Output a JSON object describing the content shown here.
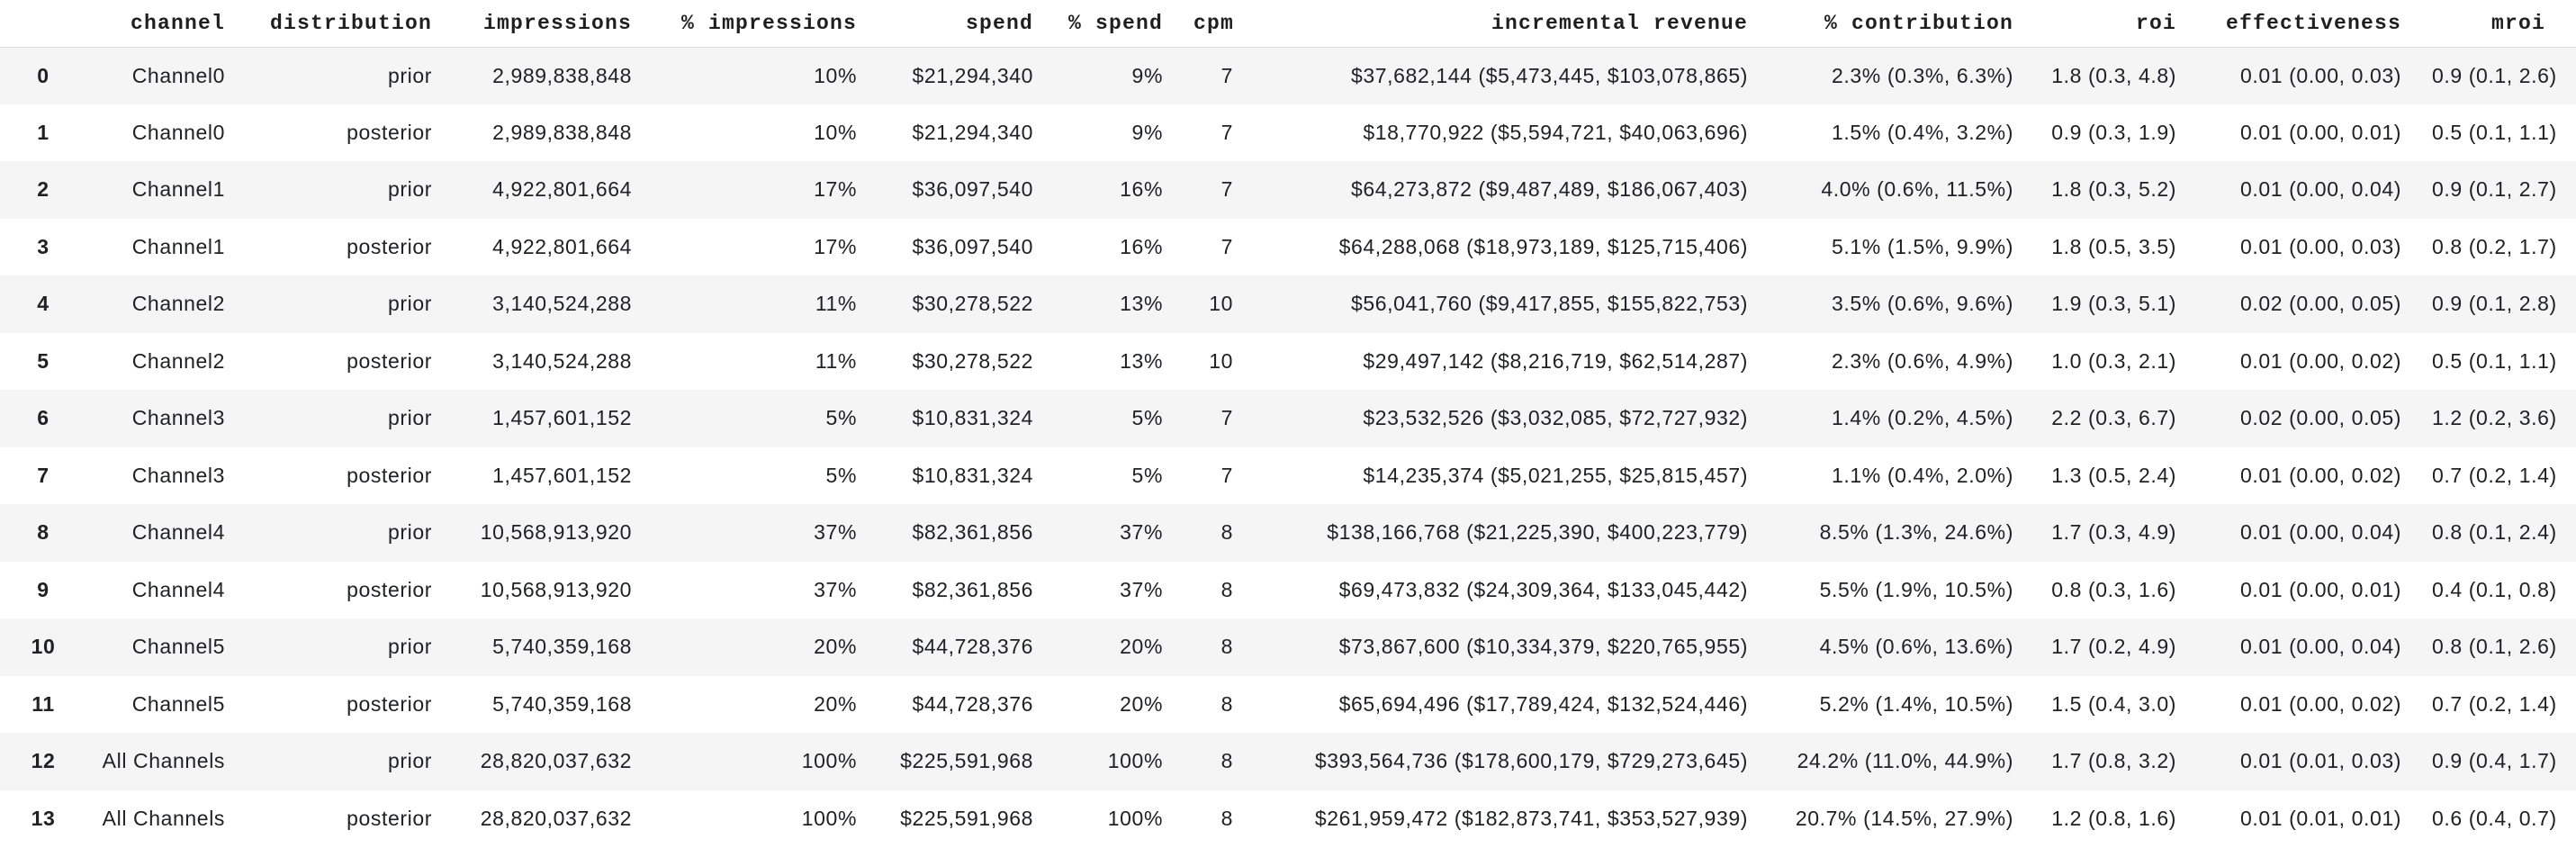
{
  "style": {
    "stripe_color": "#f5f5f5",
    "header_border_color": "#e0e0e0",
    "text_color": "#202124"
  },
  "table": {
    "columns": [
      "",
      "channel",
      "distribution",
      "impressions",
      "% impressions",
      "spend",
      "% spend",
      "cpm",
      "incremental revenue",
      "% contribution",
      "roi",
      "effectiveness",
      "mroi"
    ],
    "column_slugs": [
      "index",
      "channel",
      "distribution",
      "impressions",
      "pct-impressions",
      "spend",
      "pct-spend",
      "cpm",
      "incremental-revenue",
      "pct-contribution",
      "roi",
      "effectiveness",
      "mroi"
    ],
    "rows": [
      [
        "0",
        "Channel0",
        "prior",
        "2,989,838,848",
        "10%",
        "$21,294,340",
        "9%",
        "7",
        "$37,682,144 ($5,473,445, $103,078,865)",
        "2.3% (0.3%, 6.3%)",
        "1.8 (0.3, 4.8)",
        "0.01 (0.00, 0.03)",
        "0.9 (0.1, 2.6)"
      ],
      [
        "1",
        "Channel0",
        "posterior",
        "2,989,838,848",
        "10%",
        "$21,294,340",
        "9%",
        "7",
        "$18,770,922 ($5,594,721, $40,063,696)",
        "1.5% (0.4%, 3.2%)",
        "0.9 (0.3, 1.9)",
        "0.01 (0.00, 0.01)",
        "0.5 (0.1, 1.1)"
      ],
      [
        "2",
        "Channel1",
        "prior",
        "4,922,801,664",
        "17%",
        "$36,097,540",
        "16%",
        "7",
        "$64,273,872 ($9,487,489, $186,067,403)",
        "4.0% (0.6%, 11.5%)",
        "1.8 (0.3, 5.2)",
        "0.01 (0.00, 0.04)",
        "0.9 (0.1, 2.7)"
      ],
      [
        "3",
        "Channel1",
        "posterior",
        "4,922,801,664",
        "17%",
        "$36,097,540",
        "16%",
        "7",
        "$64,288,068 ($18,973,189, $125,715,406)",
        "5.1% (1.5%, 9.9%)",
        "1.8 (0.5, 3.5)",
        "0.01 (0.00, 0.03)",
        "0.8 (0.2, 1.7)"
      ],
      [
        "4",
        "Channel2",
        "prior",
        "3,140,524,288",
        "11%",
        "$30,278,522",
        "13%",
        "10",
        "$56,041,760 ($9,417,855, $155,822,753)",
        "3.5% (0.6%, 9.6%)",
        "1.9 (0.3, 5.1)",
        "0.02 (0.00, 0.05)",
        "0.9 (0.1, 2.8)"
      ],
      [
        "5",
        "Channel2",
        "posterior",
        "3,140,524,288",
        "11%",
        "$30,278,522",
        "13%",
        "10",
        "$29,497,142 ($8,216,719, $62,514,287)",
        "2.3% (0.6%, 4.9%)",
        "1.0 (0.3, 2.1)",
        "0.01 (0.00, 0.02)",
        "0.5 (0.1, 1.1)"
      ],
      [
        "6",
        "Channel3",
        "prior",
        "1,457,601,152",
        "5%",
        "$10,831,324",
        "5%",
        "7",
        "$23,532,526 ($3,032,085, $72,727,932)",
        "1.4% (0.2%, 4.5%)",
        "2.2 (0.3, 6.7)",
        "0.02 (0.00, 0.05)",
        "1.2 (0.2, 3.6)"
      ],
      [
        "7",
        "Channel3",
        "posterior",
        "1,457,601,152",
        "5%",
        "$10,831,324",
        "5%",
        "7",
        "$14,235,374 ($5,021,255, $25,815,457)",
        "1.1% (0.4%, 2.0%)",
        "1.3 (0.5, 2.4)",
        "0.01 (0.00, 0.02)",
        "0.7 (0.2, 1.4)"
      ],
      [
        "8",
        "Channel4",
        "prior",
        "10,568,913,920",
        "37%",
        "$82,361,856",
        "37%",
        "8",
        "$138,166,768 ($21,225,390, $400,223,779)",
        "8.5% (1.3%, 24.6%)",
        "1.7 (0.3, 4.9)",
        "0.01 (0.00, 0.04)",
        "0.8 (0.1, 2.4)"
      ],
      [
        "9",
        "Channel4",
        "posterior",
        "10,568,913,920",
        "37%",
        "$82,361,856",
        "37%",
        "8",
        "$69,473,832 ($24,309,364, $133,045,442)",
        "5.5% (1.9%, 10.5%)",
        "0.8 (0.3, 1.6)",
        "0.01 (0.00, 0.01)",
        "0.4 (0.1, 0.8)"
      ],
      [
        "10",
        "Channel5",
        "prior",
        "5,740,359,168",
        "20%",
        "$44,728,376",
        "20%",
        "8",
        "$73,867,600 ($10,334,379, $220,765,955)",
        "4.5% (0.6%, 13.6%)",
        "1.7 (0.2, 4.9)",
        "0.01 (0.00, 0.04)",
        "0.8 (0.1, 2.6)"
      ],
      [
        "11",
        "Channel5",
        "posterior",
        "5,740,359,168",
        "20%",
        "$44,728,376",
        "20%",
        "8",
        "$65,694,496 ($17,789,424, $132,524,446)",
        "5.2% (1.4%, 10.5%)",
        "1.5 (0.4, 3.0)",
        "0.01 (0.00, 0.02)",
        "0.7 (0.2, 1.4)"
      ],
      [
        "12",
        "All Channels",
        "prior",
        "28,820,037,632",
        "100%",
        "$225,591,968",
        "100%",
        "8",
        "$393,564,736 ($178,600,179, $729,273,645)",
        "24.2% (11.0%, 44.9%)",
        "1.7 (0.8, 3.2)",
        "0.01 (0.01, 0.03)",
        "0.9 (0.4, 1.7)"
      ],
      [
        "13",
        "All Channels",
        "posterior",
        "28,820,037,632",
        "100%",
        "$225,591,968",
        "100%",
        "8",
        "$261,959,472 ($182,873,741, $353,527,939)",
        "20.7% (14.5%, 27.9%)",
        "1.2 (0.8, 1.6)",
        "0.01 (0.01, 0.01)",
        "0.6 (0.4, 0.7)"
      ]
    ]
  }
}
